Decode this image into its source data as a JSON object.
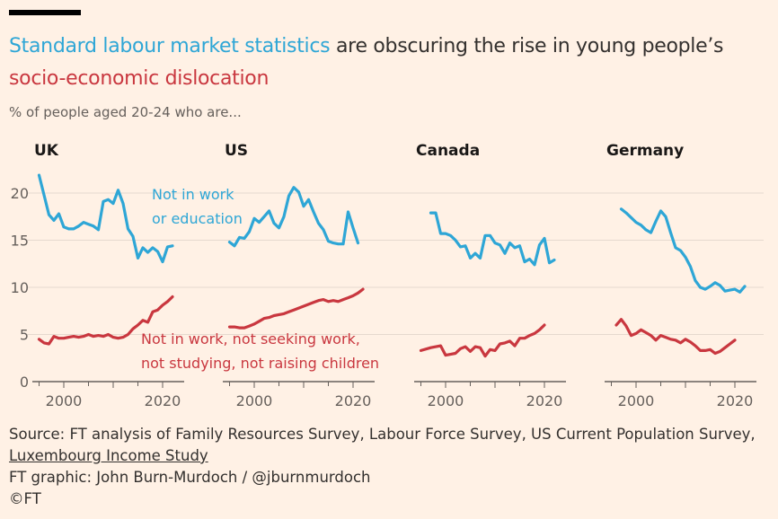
{
  "header": {
    "title_highlight": "Standard labour market statistics",
    "title_rest": " are obscuring the rise in young people’s",
    "title_red": "socio-economic dislocation",
    "subtitle": "% of people aged 20-24 who are..."
  },
  "footer": {
    "source": "Source: FT analysis of Family Resources Survey, Labour Force Survey, US Current Population Survey,",
    "source_link": "Luxembourg Income Study",
    "credit": "FT graphic: John Burn-Murdoch / @jburnmurdoch",
    "copyright": "©FT"
  },
  "colors": {
    "background": "#fff1e5",
    "neet": "#2ea6d6",
    "inactive": "#c9373f",
    "text": "#33302e"
  },
  "chart_data": {
    "type": "line",
    "ylim": [
      0,
      22
    ],
    "xlim": [
      1994,
      2024
    ],
    "yticks": [
      0,
      5,
      10,
      15,
      20
    ],
    "xticks": [
      2000,
      2020
    ],
    "annotations": {
      "neet_line1": "Not in work",
      "neet_line2": "or education",
      "inactive_line1": "Not in work, not seeking work,",
      "inactive_line2": "not studying, not raising children"
    },
    "panels": [
      {
        "name": "UK",
        "series": [
          {
            "name": "Not in work or education",
            "x": [
              1995,
              1996,
              1997,
              1998,
              1999,
              2000,
              2001,
              2002,
              2003,
              2004,
              2005,
              2006,
              2007,
              2008,
              2009,
              2010,
              2011,
              2012,
              2013,
              2014,
              2015,
              2016,
              2017,
              2018,
              2019,
              2020,
              2021,
              2022
            ],
            "y": [
              21.9,
              19.8,
              17.7,
              17.1,
              17.8,
              16.4,
              16.2,
              16.2,
              16.5,
              16.9,
              16.7,
              16.5,
              16.1,
              19.1,
              19.3,
              18.9,
              20.3,
              18.9,
              16.2,
              15.4,
              13.1,
              14.2,
              13.7,
              14.2,
              13.8,
              12.7,
              14.3,
              14.4
            ]
          },
          {
            "name": "Not in work, not seeking work, not studying, not raising children",
            "x": [
              1995,
              1996,
              1997,
              1998,
              1999,
              2000,
              2001,
              2002,
              2003,
              2004,
              2005,
              2006,
              2007,
              2008,
              2009,
              2010,
              2011,
              2012,
              2013,
              2014,
              2015,
              2016,
              2017,
              2018,
              2019,
              2020,
              2021,
              2022
            ],
            "y": [
              4.5,
              4.1,
              4.0,
              4.8,
              4.6,
              4.6,
              4.7,
              4.8,
              4.7,
              4.8,
              5.0,
              4.8,
              4.9,
              4.8,
              5.0,
              4.7,
              4.6,
              4.7,
              5.0,
              5.6,
              6.0,
              6.5,
              6.3,
              7.4,
              7.6,
              8.1,
              8.5,
              9.0
            ]
          }
        ]
      },
      {
        "name": "US",
        "series": [
          {
            "name": "Not in work or education",
            "x": [
              1995,
              1996,
              1997,
              1998,
              1999,
              2000,
              2001,
              2002,
              2003,
              2004,
              2005,
              2006,
              2007,
              2008,
              2009,
              2010,
              2011,
              2012,
              2013,
              2014,
              2015,
              2016,
              2017,
              2018,
              2019,
              2020,
              2021
            ],
            "y": [
              14.8,
              14.4,
              15.3,
              15.2,
              15.9,
              17.3,
              16.9,
              17.5,
              18.1,
              16.8,
              16.3,
              17.5,
              19.7,
              20.6,
              20.1,
              18.6,
              19.3,
              18.0,
              16.8,
              16.1,
              14.9,
              14.7,
              14.6,
              14.6,
              18.0,
              16.3,
              14.7
            ]
          },
          {
            "name": "Not in work, not seeking work, not studying, not raising children",
            "x": [
              1995,
              1996,
              1997,
              1998,
              1999,
              2000,
              2001,
              2002,
              2003,
              2004,
              2005,
              2006,
              2007,
              2008,
              2009,
              2010,
              2011,
              2012,
              2013,
              2014,
              2015,
              2016,
              2017,
              2018,
              2019,
              2020,
              2021,
              2022
            ],
            "y": [
              5.8,
              5.8,
              5.7,
              5.7,
              5.9,
              6.1,
              6.4,
              6.7,
              6.8,
              7.0,
              7.1,
              7.2,
              7.4,
              7.6,
              7.8,
              8.0,
              8.2,
              8.4,
              8.6,
              8.7,
              8.5,
              8.6,
              8.5,
              8.7,
              8.9,
              9.1,
              9.4,
              9.8
            ]
          }
        ]
      },
      {
        "name": "Canada",
        "series": [
          {
            "name": "Not in work or education",
            "x": [
              1997,
              1998,
              1999,
              2000,
              2001,
              2002,
              2003,
              2004,
              2005,
              2006,
              2007,
              2008,
              2009,
              2010,
              2011,
              2012,
              2013,
              2014,
              2015,
              2016,
              2017,
              2018,
              2019,
              2020,
              2021,
              2022
            ],
            "y": [
              17.9,
              17.9,
              15.7,
              15.7,
              15.5,
              15.0,
              14.3,
              14.4,
              13.1,
              13.6,
              13.1,
              15.5,
              15.5,
              14.7,
              14.5,
              13.6,
              14.7,
              14.2,
              14.4,
              12.7,
              13.0,
              12.4,
              14.5,
              15.2,
              12.6,
              12.9
            ]
          },
          {
            "name": "Not in work, not seeking work, not studying, not raising children",
            "x": [
              1995,
              1997,
              1999,
              2000,
              2001,
              2002,
              2003,
              2004,
              2005,
              2006,
              2007,
              2008,
              2009,
              2010,
              2011,
              2012,
              2013,
              2014,
              2015,
              2016,
              2017,
              2018,
              2019,
              2020
            ],
            "y": [
              3.3,
              3.6,
              3.8,
              2.8,
              2.9,
              3.0,
              3.5,
              3.7,
              3.2,
              3.7,
              3.6,
              2.7,
              3.4,
              3.3,
              4.0,
              4.1,
              4.3,
              3.8,
              4.6,
              4.6,
              4.9,
              5.1,
              5.5,
              6.0
            ]
          }
        ]
      },
      {
        "name": "Germany",
        "series": [
          {
            "name": "Not in work or education",
            "x": [
              1997,
              1998,
              1999,
              2000,
              2001,
              2002,
              2003,
              2004,
              2005,
              2006,
              2007,
              2008,
              2009,
              2010,
              2011,
              2012,
              2013,
              2014,
              2015,
              2016,
              2017,
              2018,
              2019,
              2020,
              2021,
              2022
            ],
            "y": [
              18.3,
              17.9,
              17.4,
              16.9,
              16.6,
              16.1,
              15.8,
              17.0,
              18.1,
              17.5,
              15.8,
              14.2,
              13.9,
              13.2,
              12.2,
              10.7,
              10.0,
              9.8,
              10.1,
              10.5,
              10.2,
              9.6,
              9.7,
              9.8,
              9.5,
              10.1
            ]
          },
          {
            "name": "Not in work, not seeking work, not studying, not raising children",
            "x": [
              1996,
              1997,
              1998,
              1999,
              2000,
              2001,
              2002,
              2003,
              2004,
              2005,
              2006,
              2007,
              2008,
              2009,
              2010,
              2011,
              2012,
              2013,
              2014,
              2015,
              2016,
              2017,
              2018,
              2019,
              2020
            ],
            "y": [
              6.0,
              6.6,
              5.9,
              4.9,
              5.1,
              5.5,
              5.2,
              4.9,
              4.4,
              4.9,
              4.7,
              4.5,
              4.4,
              4.1,
              4.5,
              4.2,
              3.8,
              3.3,
              3.3,
              3.4,
              3.0,
              3.2,
              3.6,
              4.0,
              4.4
            ]
          }
        ]
      }
    ]
  }
}
